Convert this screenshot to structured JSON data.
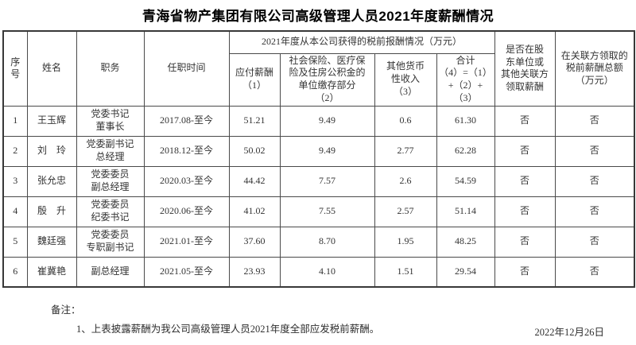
{
  "page": {
    "title": "青海省物产集团有限公司高级管理人员2021年度薪酬情况",
    "date": "2022年12月26日"
  },
  "table": {
    "header": {
      "seq": "序\n号",
      "name": "姓名",
      "position": "职务",
      "tenure": "任职时间",
      "group": "2021年度从本公司获得的税前报酬情况（万元）",
      "payable": "应付薪酬\n（1）",
      "social": "社会保险、医疗保\n险及住房公积金的\n单位缴存部分\n（2）",
      "other": "其他货币\n性收入\n（3）",
      "total": "合计\n（4）=（1）\n+（2）+\n（3）",
      "related_party_flag": "是否在股\n东单位或\n其他关联方\n领取薪酬",
      "related_party_amount": "在关联方领取的\n税前薪酬总额\n（万元）"
    },
    "rows": [
      [
        "1",
        "王玉辉",
        "党委书记\n董事长",
        "2017.08-至今",
        "51.21",
        "9.49",
        "0.6",
        "61.30",
        "否",
        "否"
      ],
      [
        "2",
        "刘　玲",
        "党委副书记\n总经理",
        "2018.12-至今",
        "50.02",
        "9.49",
        "2.77",
        "62.28",
        "否",
        "否"
      ],
      [
        "3",
        "张允忠",
        "党委委员\n副总经理",
        "2020.03-至今",
        "44.42",
        "7.57",
        "2.6",
        "54.59",
        "否",
        "否"
      ],
      [
        "4",
        "殷　升",
        "党委委员\n纪委书记",
        "2020.06-至今",
        "41.02",
        "7.55",
        "2.57",
        "51.14",
        "否",
        "否"
      ],
      [
        "5",
        "魏廷强",
        "党委委员\n专职副书记",
        "2021.01-至今",
        "37.60",
        "8.70",
        "1.95",
        "48.25",
        "否",
        "否"
      ],
      [
        "6",
        "崔冀艳",
        "副总经理",
        "2021.05-至今",
        "23.93",
        "4.10",
        "1.51",
        "29.54",
        "否",
        "否"
      ]
    ]
  },
  "notes": {
    "label": "备注：",
    "items": [
      "1、上表披露薪酬为我公司高级管理人员2021年度全部应发税前薪酬。"
    ]
  }
}
